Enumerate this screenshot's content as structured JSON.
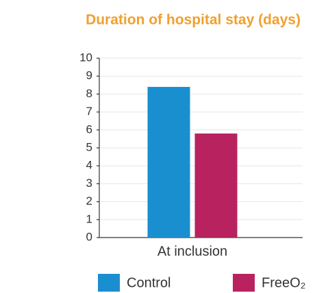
{
  "chart_data": {
    "type": "bar",
    "title": "Duration of hospital stay (days)",
    "categories": [
      "At inclusion"
    ],
    "series": [
      {
        "name": "Control",
        "color": "#1a8fcf",
        "values": [
          8.4
        ]
      },
      {
        "name": "FreeO₂",
        "color": "#b8235f",
        "values": [
          5.8
        ]
      }
    ],
    "ylim": [
      0,
      10
    ],
    "yticks": [
      0,
      1,
      2,
      3,
      4,
      5,
      6,
      7,
      8,
      9,
      10
    ],
    "grid": true,
    "legend": "bottom"
  }
}
